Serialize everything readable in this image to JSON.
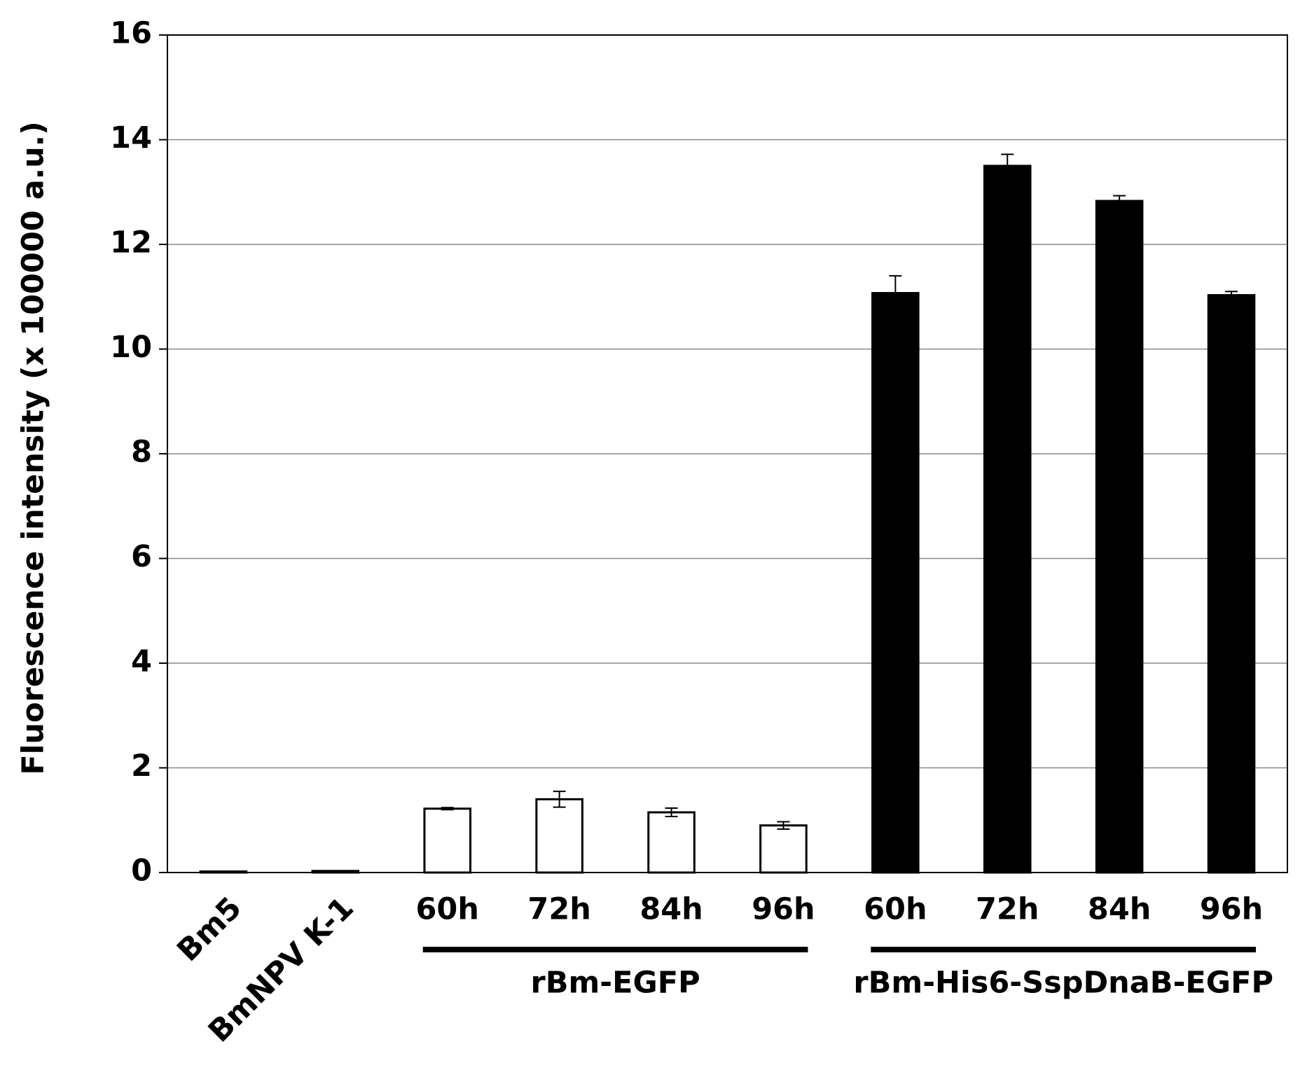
{
  "chart_data": {
    "type": "bar",
    "y_label": "Fluorescence  intensity (x 100000 a.u.)",
    "categories": [
      "Bm5",
      "BmNPV K-1",
      "60h",
      "72h",
      "84h",
      "96h",
      "60h",
      "72h",
      "84h",
      "96h"
    ],
    "values": [
      0.02,
      0.03,
      1.22,
      1.4,
      1.15,
      0.9,
      11.07,
      13.5,
      12.83,
      11.03
    ],
    "errors": [
      0,
      0,
      0.02,
      0.15,
      0.08,
      0.07,
      0.33,
      0.22,
      0.1,
      0.07
    ],
    "colors": [
      "#ffffff",
      "#ffffff",
      "#ffffff",
      "#ffffff",
      "#ffffff",
      "#ffffff",
      "#000000",
      "#000000",
      "#000000",
      "#000000"
    ],
    "groups": [
      {
        "name": "rBm-EGFP",
        "first": 2,
        "last": 5
      },
      {
        "name": "rBm-His6-SspDnaB-EGFP",
        "first": 6,
        "last": 9
      }
    ],
    "ylim": [
      0,
      16
    ],
    "yticks": [
      0,
      2,
      4,
      6,
      8,
      10,
      12,
      14,
      16
    ],
    "grid": true
  }
}
